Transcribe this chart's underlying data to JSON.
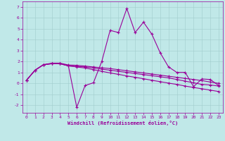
{
  "title": "",
  "xlabel": "Windchill (Refroidissement éolien,°C)",
  "xlim": [
    -0.5,
    23.5
  ],
  "ylim": [
    -2.7,
    7.5
  ],
  "yticks": [
    -2,
    -1,
    0,
    1,
    2,
    3,
    4,
    5,
    6,
    7
  ],
  "xticks": [
    0,
    1,
    2,
    3,
    4,
    5,
    6,
    7,
    8,
    9,
    10,
    11,
    12,
    13,
    14,
    15,
    16,
    17,
    18,
    19,
    20,
    21,
    22,
    23
  ],
  "background_color": "#c0e8e8",
  "grid_color": "#a0cccc",
  "line_color": "#990099",
  "line1_y": [
    0.3,
    1.2,
    1.7,
    1.8,
    1.8,
    1.6,
    -2.2,
    -0.2,
    0.05,
    2.0,
    4.85,
    4.65,
    6.85,
    4.65,
    5.6,
    4.5,
    2.8,
    1.5,
    1.0,
    1.0,
    -0.3,
    0.4,
    0.35,
    -0.2
  ],
  "line2_y": [
    0.3,
    1.2,
    1.7,
    1.8,
    1.8,
    1.6,
    1.55,
    1.5,
    1.4,
    1.3,
    1.2,
    1.1,
    1.0,
    0.9,
    0.8,
    0.7,
    0.6,
    0.5,
    0.35,
    0.2,
    0.05,
    -0.1,
    -0.15,
    -0.25
  ],
  "line3_y": [
    0.3,
    1.2,
    1.7,
    1.8,
    1.8,
    1.6,
    1.5,
    1.4,
    1.25,
    1.1,
    0.95,
    0.82,
    0.68,
    0.55,
    0.42,
    0.28,
    0.15,
    0.02,
    -0.1,
    -0.25,
    -0.38,
    -0.5,
    -0.62,
    -0.75
  ],
  "line4_y": [
    0.3,
    1.2,
    1.7,
    1.85,
    1.85,
    1.68,
    1.65,
    1.58,
    1.5,
    1.42,
    1.35,
    1.25,
    1.15,
    1.05,
    0.95,
    0.85,
    0.75,
    0.65,
    0.55,
    0.45,
    0.35,
    0.25,
    0.12,
    0.0
  ],
  "linewidth": 0.8,
  "markersize": 3
}
